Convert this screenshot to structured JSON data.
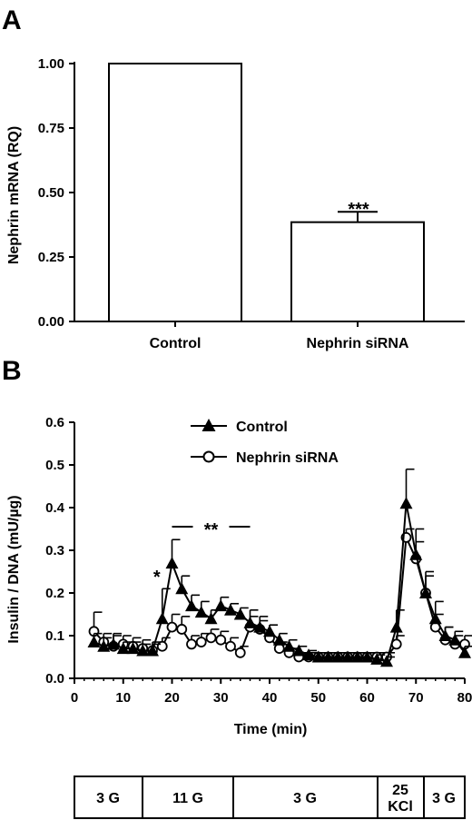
{
  "chart_data": [
    {
      "panel": "A",
      "type": "bar",
      "ylabel": "Nephrin mRNA  (RQ)",
      "ylim": [
        0,
        1.0
      ],
      "yticks": [
        "0.00",
        "0.25",
        "0.50",
        "0.75",
        "1.00"
      ],
      "yticks_values": [
        0,
        0.25,
        0.5,
        0.75,
        1.0
      ],
      "categories": [
        "Control",
        "Nephrin siRNA"
      ],
      "values": [
        1.0,
        0.385
      ],
      "error": [
        0,
        0.04
      ],
      "annotations": [
        "***"
      ]
    },
    {
      "panel": "B",
      "type": "line",
      "xlabel": "Time (min)",
      "ylabel": "Insulin / DNA (mU/µg)",
      "xlim": [
        0,
        80
      ],
      "ylim": [
        0,
        0.6
      ],
      "xticks": [
        "0",
        "10",
        "20",
        "30",
        "40",
        "50",
        "60",
        "70",
        "80"
      ],
      "xticks_values": [
        0,
        10,
        20,
        30,
        40,
        50,
        60,
        70,
        80
      ],
      "yticks": [
        "0.0",
        "0.1",
        "0.2",
        "0.3",
        "0.4",
        "0.5",
        "0.6"
      ],
      "yticks_values": [
        0,
        0.1,
        0.2,
        0.3,
        0.4,
        0.5,
        0.6
      ],
      "legend_position": "top",
      "series": [
        {
          "name": "Control",
          "marker": "filled-triangle",
          "x": [
            4,
            6,
            8,
            10,
            12,
            14,
            16,
            18,
            20,
            22,
            24,
            26,
            28,
            30,
            32,
            34,
            36,
            38,
            40,
            42,
            44,
            46,
            48,
            50,
            52,
            54,
            56,
            58,
            60,
            62,
            64,
            66,
            68,
            70,
            72,
            74,
            76,
            78,
            80
          ],
          "y": [
            0.085,
            0.075,
            0.08,
            0.07,
            0.07,
            0.065,
            0.065,
            0.14,
            0.27,
            0.21,
            0.17,
            0.155,
            0.14,
            0.17,
            0.16,
            0.15,
            0.13,
            0.12,
            0.11,
            0.09,
            0.075,
            0.065,
            0.055,
            0.05,
            0.05,
            0.05,
            0.05,
            0.05,
            0.05,
            0.045,
            0.04,
            0.12,
            0.41,
            0.29,
            0.2,
            0.14,
            0.1,
            0.09,
            0.06
          ],
          "err": [
            0.02,
            0.02,
            0.02,
            0.015,
            0.015,
            0.015,
            0.015,
            0.07,
            0.055,
            0.03,
            0.025,
            0.025,
            0.02,
            0.02,
            0.015,
            0.015,
            0.015,
            0.015,
            0.015,
            0.015,
            0.015,
            0.01,
            0.01,
            0.01,
            0.01,
            0.01,
            0.01,
            0.01,
            0.01,
            0.01,
            0.01,
            0.04,
            0.08,
            0.06,
            0.05,
            0.04,
            0.02,
            0.02,
            0.015
          ]
        },
        {
          "name": "Nephrin siRNA",
          "marker": "open-circle",
          "x": [
            4,
            6,
            8,
            10,
            12,
            14,
            16,
            18,
            20,
            22,
            24,
            26,
            28,
            30,
            32,
            34,
            36,
            38,
            40,
            42,
            44,
            46,
            48,
            50,
            52,
            54,
            56,
            58,
            60,
            62,
            64,
            66,
            68,
            70,
            72,
            74,
            76,
            78,
            80
          ],
          "y": [
            0.11,
            0.085,
            0.075,
            0.08,
            0.075,
            0.07,
            0.065,
            0.075,
            0.12,
            0.115,
            0.08,
            0.085,
            0.095,
            0.09,
            0.075,
            0.06,
            0.12,
            0.115,
            0.095,
            0.07,
            0.06,
            0.05,
            0.05,
            0.05,
            0.05,
            0.05,
            0.05,
            0.05,
            0.05,
            0.05,
            0.05,
            0.08,
            0.33,
            0.28,
            0.2,
            0.12,
            0.09,
            0.08,
            0.08
          ],
          "err": [
            0.045,
            0.02,
            0.03,
            0.02,
            0.02,
            0.02,
            0.02,
            0.02,
            0.03,
            0.03,
            0.02,
            0.02,
            0.02,
            0.02,
            0.02,
            0.015,
            0.04,
            0.03,
            0.03,
            0.015,
            0.01,
            0.01,
            0.01,
            0.01,
            0.01,
            0.01,
            0.01,
            0.01,
            0.01,
            0.01,
            0.01,
            0.02,
            0.02,
            0.04,
            0.04,
            0.03,
            0.03,
            0.02,
            0.02
          ]
        }
      ],
      "significance": [
        {
          "label": "*",
          "x": 18
        },
        {
          "label": "**",
          "x_start": 20,
          "x_end": 36
        }
      ],
      "conditions": [
        "3 G",
        "11 G",
        "3 G",
        "25 KCl",
        "3 G"
      ]
    }
  ]
}
